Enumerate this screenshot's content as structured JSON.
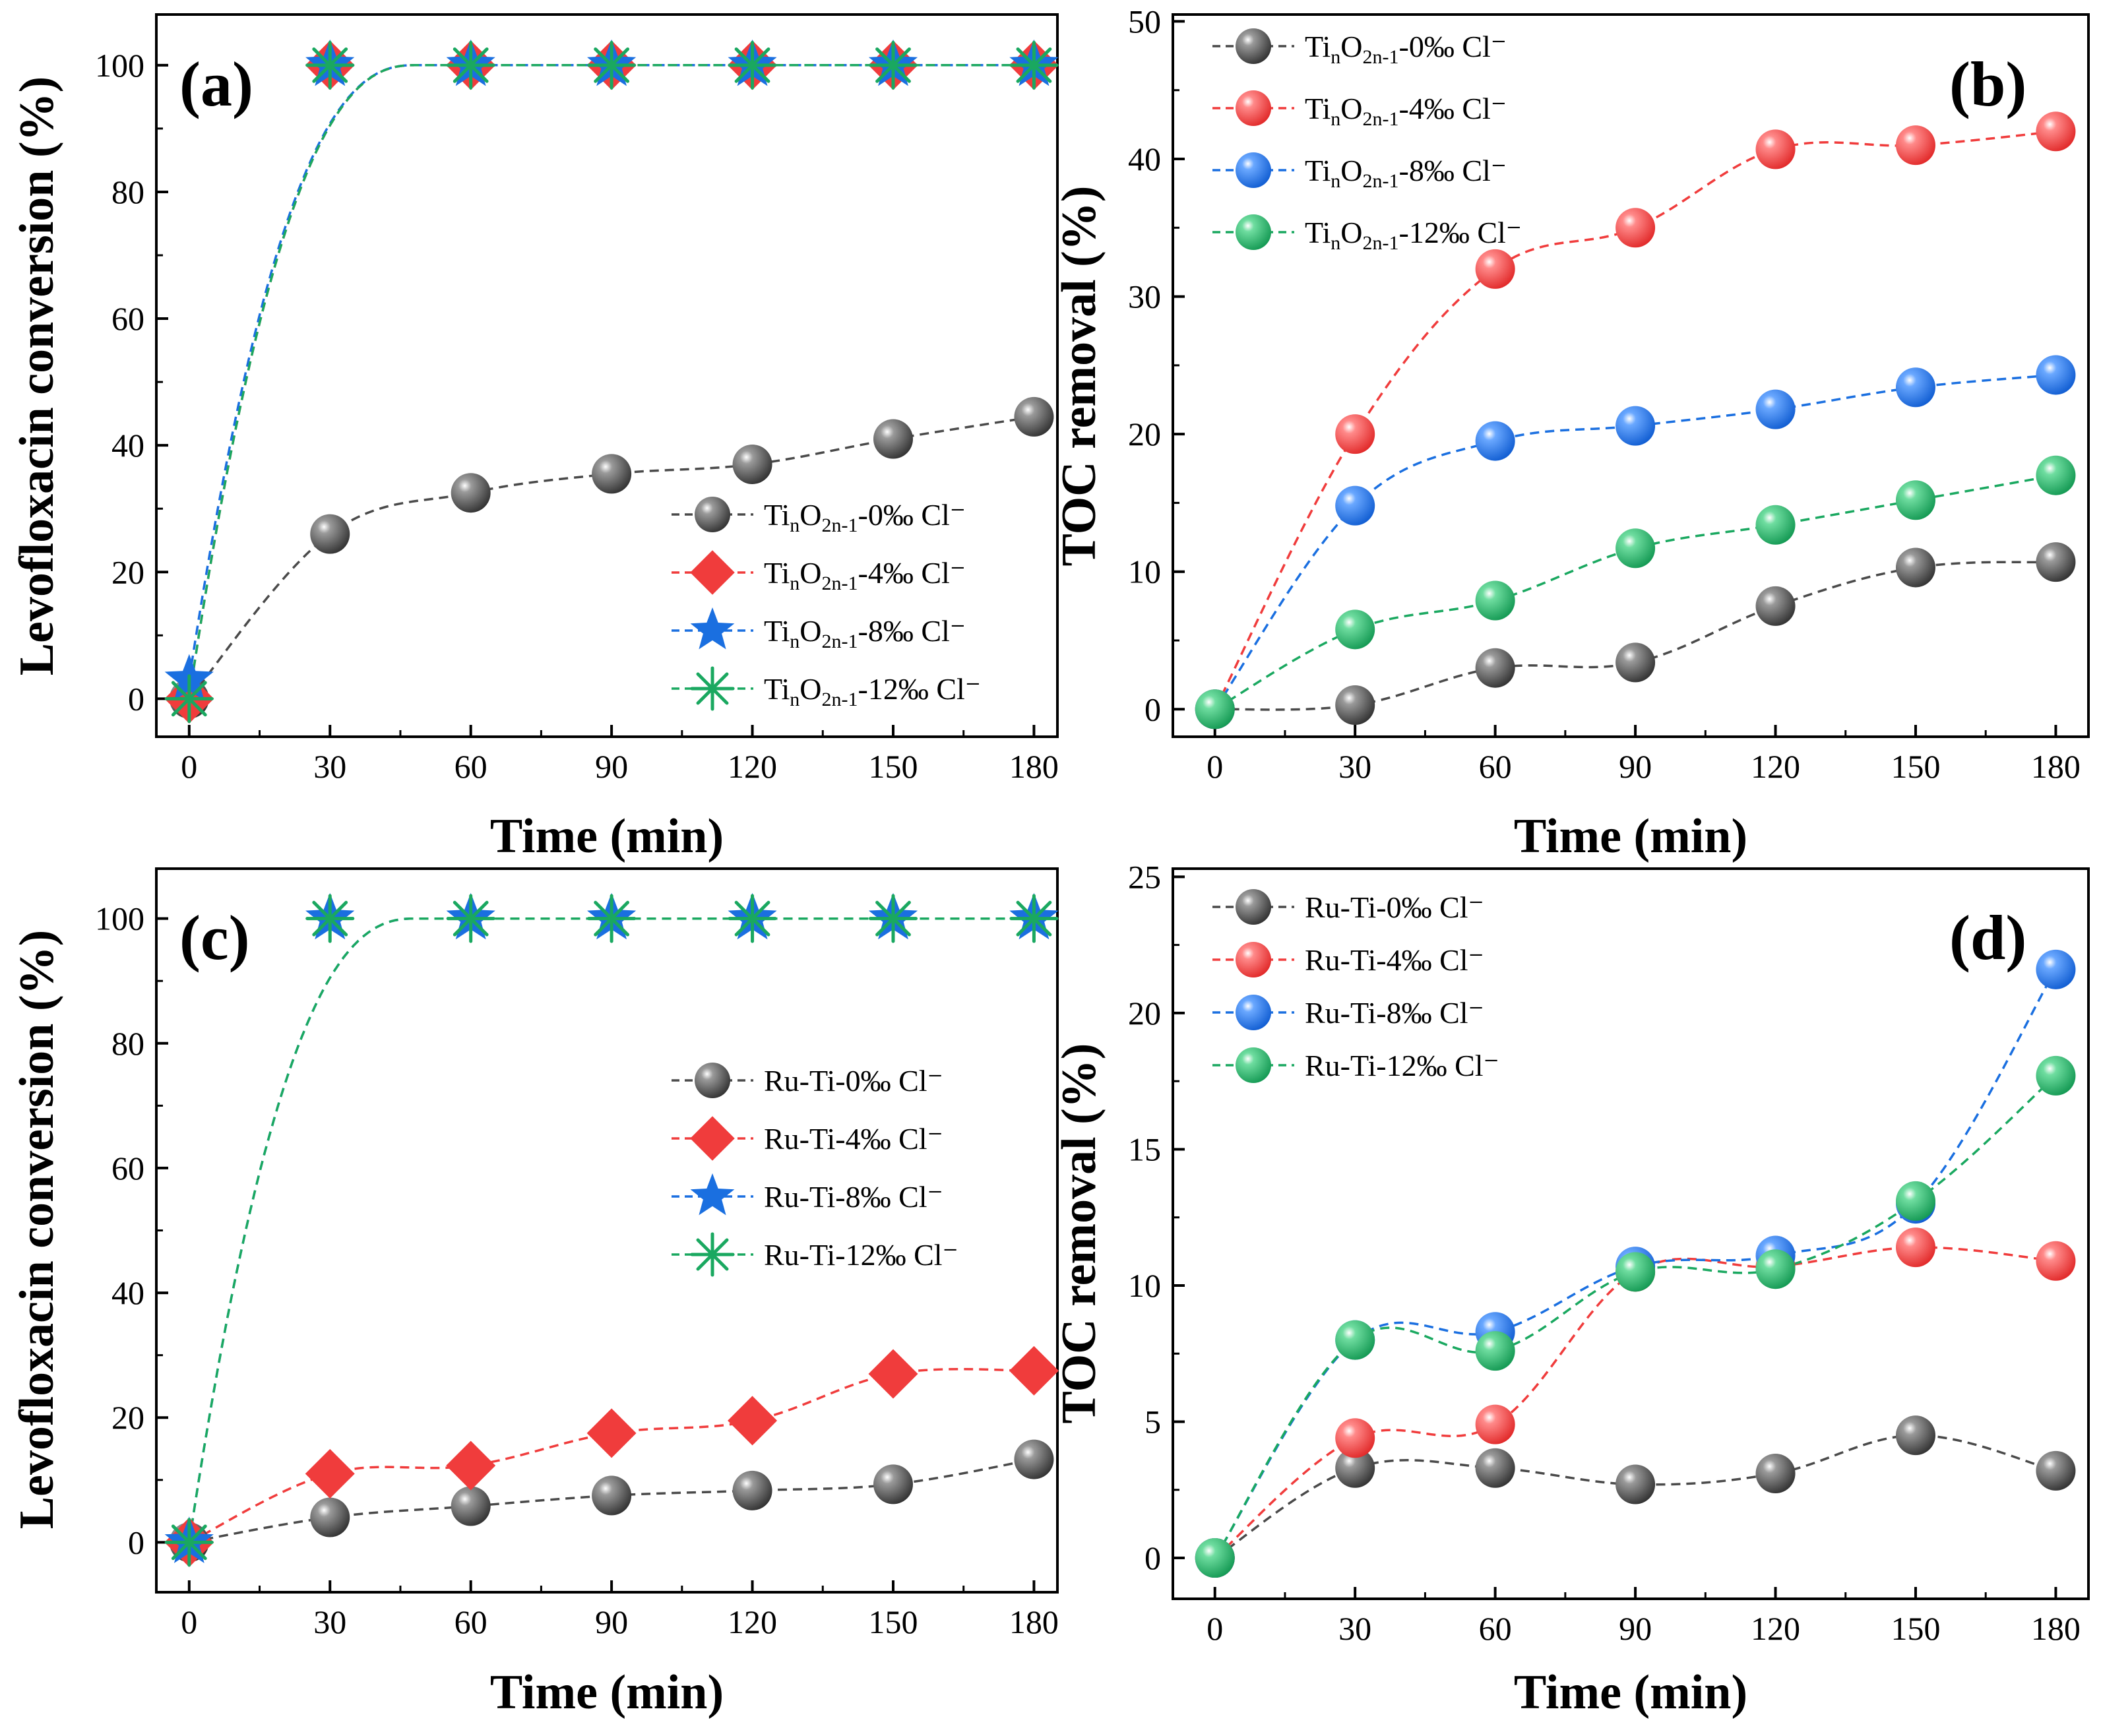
{
  "colors": {
    "black": "#4a4a4a",
    "red": "#f03c3c",
    "blue": "#1a6fe0",
    "green": "#1aa860"
  },
  "chart_data": [
    {
      "id": "a",
      "panel_label": "(a)",
      "type": "line",
      "marker_mode": "shapes",
      "xlabel": "Time (min)",
      "ylabel": "Levofloxacin conversion (%)",
      "xlim": [
        -7,
        185
      ],
      "ylim": [
        -6,
        108
      ],
      "xticks": [
        0,
        30,
        60,
        90,
        120,
        150,
        180
      ],
      "yticks": [
        0,
        20,
        40,
        60,
        80,
        100
      ],
      "legend_position": "bottom-right",
      "series": [
        {
          "base": "Ti",
          "sub1": "n",
          "mid": "O",
          "sub2": "2n-1",
          "suffix": "-0‰ Cl⁻",
          "color": "#4a4a4a",
          "marker": "sphere",
          "x": [
            0,
            30,
            60,
            90,
            120,
            150,
            180
          ],
          "values": [
            0,
            26,
            32.5,
            35.5,
            37,
            41,
            44.5
          ]
        },
        {
          "base": "Ti",
          "sub1": "n",
          "mid": "O",
          "sub2": "2n-1",
          "suffix": "-4‰ Cl⁻",
          "color": "#f03c3c",
          "marker": "diamond",
          "x": [
            0,
            30,
            60,
            90,
            120,
            150,
            180
          ],
          "values": [
            0,
            100,
            100,
            100,
            100,
            100,
            100
          ]
        },
        {
          "base": "Ti",
          "sub1": "n",
          "mid": "O",
          "sub2": "2n-1",
          "suffix": "-8‰ Cl⁻",
          "color": "#1a6fe0",
          "marker": "star",
          "x": [
            0,
            30,
            60,
            90,
            120,
            150,
            180
          ],
          "values": [
            3,
            100,
            100,
            100,
            100,
            100,
            100
          ]
        },
        {
          "base": "Ti",
          "sub1": "n",
          "mid": "O",
          "sub2": "2n-1",
          "suffix": "-12‰ Cl⁻",
          "color": "#1aa860",
          "marker": "asterisk",
          "x": [
            0,
            30,
            60,
            90,
            120,
            150,
            180
          ],
          "values": [
            0,
            100,
            100,
            100,
            100,
            100,
            100
          ]
        }
      ]
    },
    {
      "id": "b",
      "panel_label": "(b)",
      "type": "line",
      "marker_mode": "spheres",
      "xlabel": "Time (min)",
      "ylabel": "TOC removal (%)",
      "xlim": [
        -9,
        187
      ],
      "ylim": [
        -2,
        50.5
      ],
      "xticks": [
        0,
        30,
        60,
        90,
        120,
        150,
        180
      ],
      "yticks": [
        0,
        10,
        20,
        30,
        40,
        50
      ],
      "legend_position": "top-left",
      "series": [
        {
          "base": "Ti",
          "sub1": "n",
          "mid": "O",
          "sub2": "2n-1",
          "suffix": "-0‰ Cl⁻",
          "color": "#4a4a4a",
          "marker": "sphere",
          "x": [
            0,
            30,
            60,
            90,
            120,
            150,
            180
          ],
          "values": [
            0,
            0.3,
            3,
            3.4,
            7.5,
            10.3,
            10.7
          ]
        },
        {
          "base": "Ti",
          "sub1": "n",
          "mid": "O",
          "sub2": "2n-1",
          "suffix": "-4‰ Cl⁻",
          "color": "#f03c3c",
          "marker": "sphere",
          "x": [
            0,
            30,
            60,
            90,
            120,
            150,
            180
          ],
          "values": [
            0,
            20,
            32,
            35,
            40.7,
            41,
            42
          ]
        },
        {
          "base": "Ti",
          "sub1": "n",
          "mid": "O",
          "sub2": "2n-1",
          "suffix": "-8‰ Cl⁻",
          "color": "#1a6fe0",
          "marker": "sphere",
          "x": [
            0,
            30,
            60,
            90,
            120,
            150,
            180
          ],
          "values": [
            0,
            14.8,
            19.5,
            20.6,
            21.8,
            23.4,
            24.3
          ]
        },
        {
          "base": "Ti",
          "sub1": "n",
          "mid": "O",
          "sub2": "2n-1",
          "suffix": "-12‰ Cl⁻",
          "color": "#1aa860",
          "marker": "sphere",
          "x": [
            0,
            30,
            60,
            90,
            120,
            150,
            180
          ],
          "values": [
            0,
            5.8,
            7.9,
            11.7,
            13.4,
            15.2,
            17
          ]
        }
      ]
    },
    {
      "id": "c",
      "panel_label": "(c)",
      "type": "line",
      "marker_mode": "shapes",
      "xlabel": "Time (min)",
      "ylabel": "Levofloxacin conversion (%)",
      "xlim": [
        -7,
        185
      ],
      "ylim": [
        -8,
        108
      ],
      "xticks": [
        0,
        30,
        60,
        90,
        120,
        150,
        180
      ],
      "yticks": [
        0,
        20,
        40,
        60,
        80,
        100
      ],
      "legend_position": "middle-right",
      "series": [
        {
          "text": "Ru-Ti-0‰ Cl⁻",
          "color": "#4a4a4a",
          "marker": "sphere",
          "x": [
            0,
            30,
            60,
            90,
            120,
            150,
            180
          ],
          "values": [
            0,
            4,
            5.8,
            7.5,
            8.3,
            9.3,
            13.3
          ]
        },
        {
          "text": "Ru-Ti-4‰ Cl⁻",
          "color": "#f03c3c",
          "marker": "diamond",
          "x": [
            0,
            30,
            60,
            90,
            120,
            150,
            180
          ],
          "values": [
            0,
            11,
            12.3,
            17.5,
            19.5,
            27,
            27.5
          ]
        },
        {
          "text": "Ru-Ti-8‰ Cl⁻",
          "color": "#1a6fe0",
          "marker": "star",
          "x": [
            0,
            30,
            60,
            90,
            120,
            150,
            180
          ],
          "values": [
            0,
            100,
            100,
            100,
            100,
            100,
            100
          ]
        },
        {
          "text": "Ru-Ti-12‰ Cl⁻",
          "color": "#1aa860",
          "marker": "asterisk",
          "x": [
            0,
            30,
            60,
            90,
            120,
            150,
            180
          ],
          "values": [
            0,
            100,
            100,
            100,
            100,
            100,
            100
          ]
        }
      ]
    },
    {
      "id": "d",
      "panel_label": "(d)",
      "type": "line",
      "marker_mode": "spheres",
      "xlabel": "Time (min)",
      "ylabel": "TOC removal (%)",
      "xlim": [
        -9,
        187
      ],
      "ylim": [
        -1.5,
        25.3
      ],
      "xticks": [
        0,
        30,
        60,
        90,
        120,
        150,
        180
      ],
      "yticks": [
        0,
        5,
        10,
        15,
        20,
        25
      ],
      "legend_position": "top-left",
      "series": [
        {
          "text": "Ru-Ti-0‰ Cl⁻",
          "color": "#4a4a4a",
          "marker": "sphere",
          "x": [
            0,
            30,
            60,
            90,
            120,
            150,
            180
          ],
          "values": [
            0,
            3.3,
            3.3,
            2.7,
            3.1,
            4.5,
            3.2
          ]
        },
        {
          "text": "Ru-Ti-4‰ Cl⁻",
          "color": "#f03c3c",
          "marker": "sphere",
          "x": [
            0,
            30,
            60,
            90,
            120,
            150,
            180
          ],
          "values": [
            0,
            4.4,
            4.9,
            10.5,
            10.7,
            11.4,
            10.9
          ]
        },
        {
          "text": "Ru-Ti-8‰ Cl⁻",
          "color": "#1a6fe0",
          "marker": "sphere",
          "x": [
            0,
            30,
            60,
            90,
            120,
            150,
            180
          ],
          "values": [
            0,
            8,
            8.3,
            10.7,
            11.1,
            13,
            21.6
          ]
        },
        {
          "text": "Ru-Ti-12‰ Cl⁻",
          "color": "#1aa860",
          "marker": "sphere",
          "x": [
            0,
            30,
            60,
            90,
            120,
            150,
            180
          ],
          "values": [
            0,
            8,
            7.6,
            10.5,
            10.6,
            13.1,
            17.7
          ]
        }
      ]
    }
  ]
}
